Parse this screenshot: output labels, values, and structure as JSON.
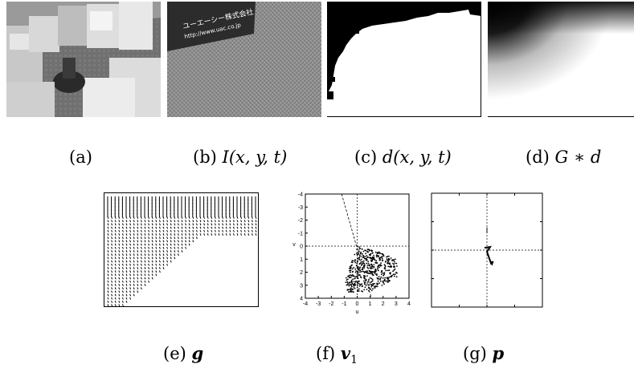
{
  "captions": {
    "a": "(a)",
    "b": "(b)",
    "b_math": "I(x, y, t)",
    "c": "(c)",
    "c_math": "d(x, y, t)",
    "d": "(d)",
    "d_math": "G ∗ d",
    "e": "(e)",
    "e_math": "g",
    "f": "(f)",
    "f_math": "v",
    "f_sub": "1",
    "g": "(g)",
    "g_math": "p"
  },
  "photo_b": {
    "banner_line1": "ユーエーシー株式会社",
    "banner_line2": "http://www.uac.co.jp"
  },
  "chart_data": [
    {
      "id": "f",
      "type": "scatter",
      "xlabel": "u",
      "ylabel": "v",
      "xlim": [
        -4,
        4
      ],
      "ylim": [
        -4,
        4
      ],
      "y_inverted": true,
      "xticks": [
        "-4",
        "-3",
        "-2",
        "-1",
        "0",
        "1",
        "2",
        "3",
        "4"
      ],
      "yticks": [
        "-4",
        "-3",
        "-2",
        "-1",
        "0",
        "1",
        "2",
        "3",
        "4"
      ],
      "dashed_line": [
        [
          -1.2,
          -4
        ],
        [
          1.1,
          4
        ]
      ],
      "points_region": [
        [
          0,
          0
        ],
        [
          1.6,
          0.4
        ],
        [
          3.0,
          1.0
        ],
        [
          3.2,
          2.3
        ],
        [
          1.3,
          3.4
        ],
        [
          -0.8,
          3.6
        ],
        [
          -0.9,
          2.5
        ],
        [
          -0.2,
          0.6
        ]
      ]
    },
    {
      "id": "g",
      "type": "line",
      "xlim": [
        -1,
        1
      ],
      "ylim": [
        -1,
        1
      ],
      "y_inverted": true,
      "vector": [
        [
          0,
          0
        ],
        [
          0.08,
          0.25
        ]
      ]
    }
  ]
}
